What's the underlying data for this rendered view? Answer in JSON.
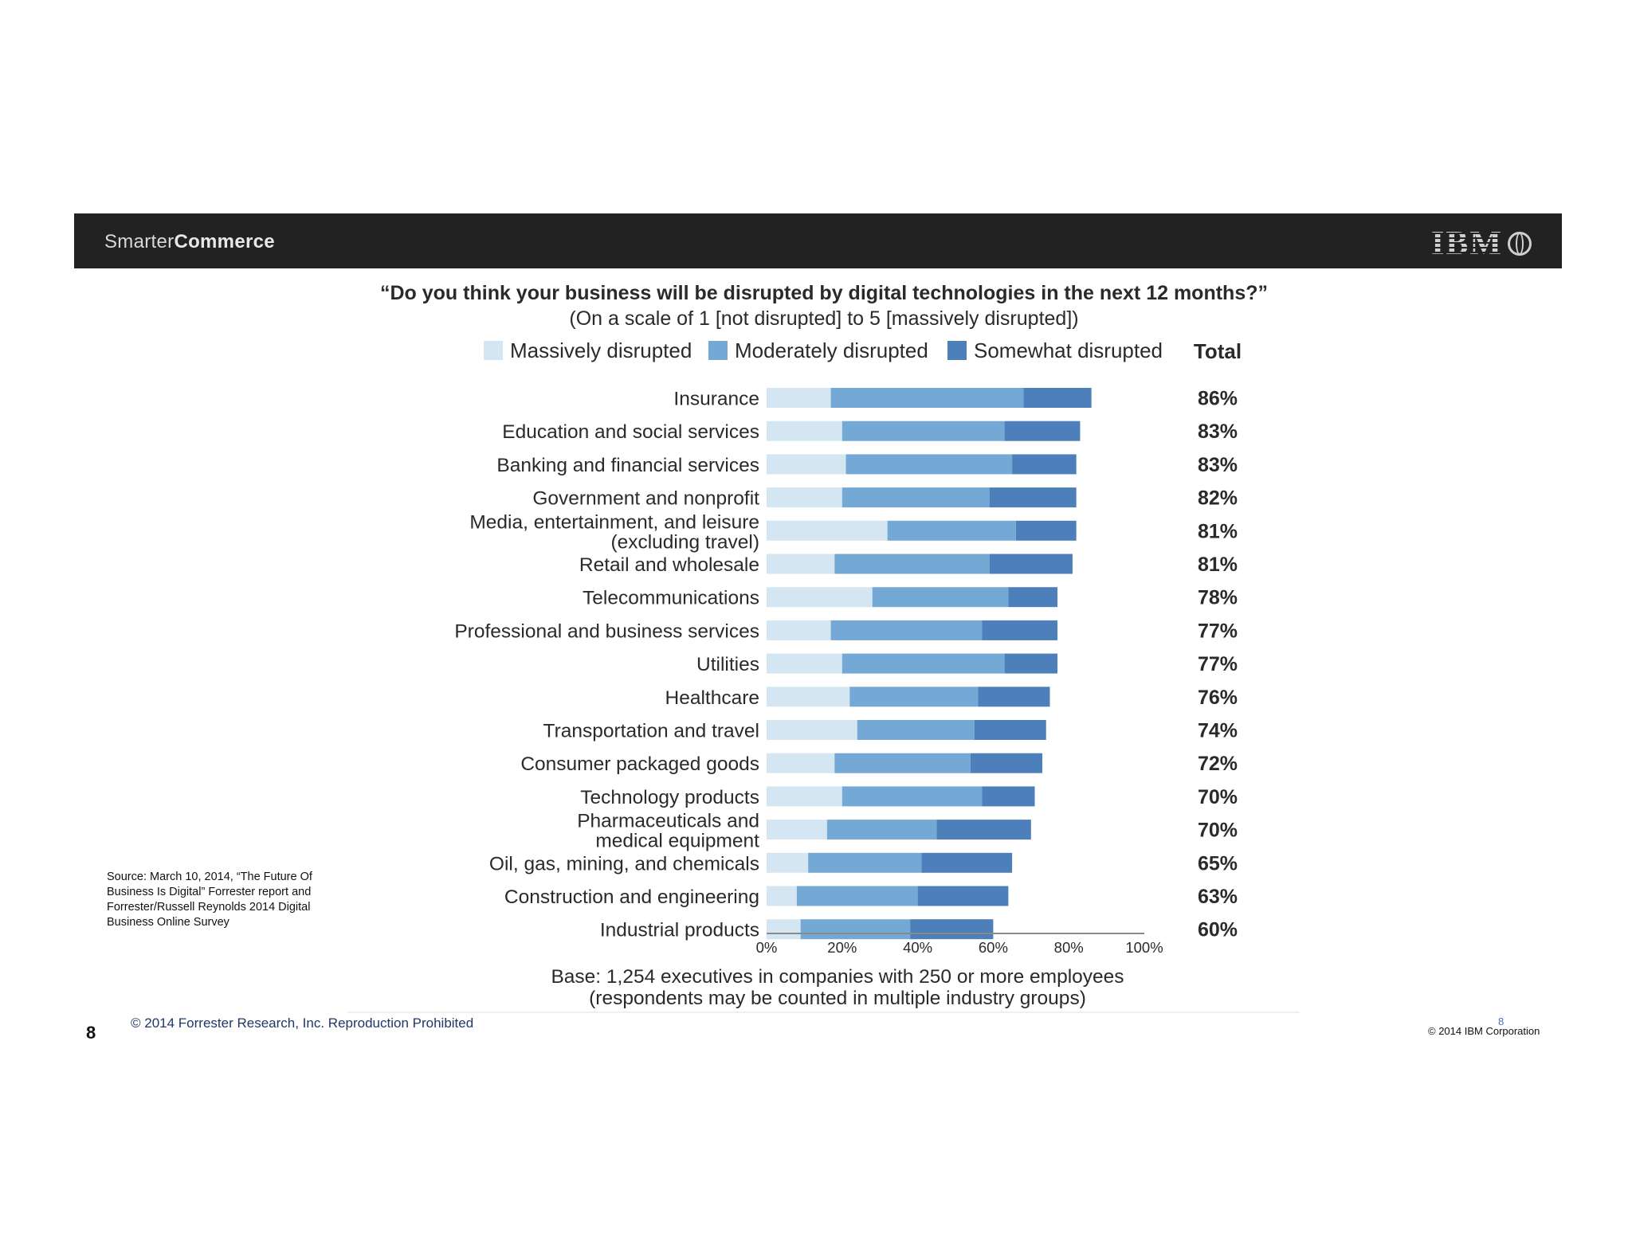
{
  "header": {
    "brand_light": "Smarter",
    "brand_bold": "Commerce",
    "logo_text": "IBM"
  },
  "chart_data": {
    "type": "bar",
    "orientation": "horizontal",
    "stacked": true,
    "title": "“Do you think your business will be disrupted by digital technologies in the next 12 months?”",
    "subtitle": "(On a scale of 1 [not disrupted] to 5 [massively disrupted])",
    "total_header": "Total",
    "categories": [
      [
        "Insurance"
      ],
      [
        "Education and social services"
      ],
      [
        "Banking and financial services"
      ],
      [
        "Government and nonprofit"
      ],
      [
        "Media, entertainment, and leisure",
        "(excluding travel)"
      ],
      [
        "Retail and wholesale"
      ],
      [
        "Telecommunications"
      ],
      [
        "Professional and business services"
      ],
      [
        "Utilities"
      ],
      [
        "Healthcare"
      ],
      [
        "Transportation and travel"
      ],
      [
        "Consumer packaged goods"
      ],
      [
        "Technology products"
      ],
      [
        "Pharmaceuticals and",
        "medical equipment"
      ],
      [
        "Oil, gas, mining, and chemicals"
      ],
      [
        "Construction and engineering"
      ],
      [
        "Industrial products"
      ]
    ],
    "series": [
      {
        "name": "Massively disrupted",
        "color": "#d3e6f2",
        "values": [
          17,
          20,
          21,
          20,
          32,
          18,
          28,
          17,
          20,
          22,
          24,
          18,
          20,
          16,
          11,
          8,
          9
        ]
      },
      {
        "name": "Moderately disrupted",
        "color": "#74a9d6",
        "values": [
          51,
          43,
          44,
          39,
          34,
          41,
          36,
          40,
          43,
          34,
          31,
          36,
          37,
          29,
          30,
          32,
          29
        ]
      },
      {
        "name": "Somewhat disrupted",
        "color": "#4d7fba",
        "values": [
          18,
          20,
          17,
          23,
          16,
          22,
          13,
          20,
          14,
          19,
          19,
          19,
          14,
          25,
          24,
          24,
          22
        ]
      }
    ],
    "totals": [
      "86%",
      "83%",
      "83%",
      "82%",
      "81%",
      "81%",
      "78%",
      "77%",
      "77%",
      "76%",
      "74%",
      "72%",
      "70%",
      "70%",
      "65%",
      "63%",
      "60%"
    ],
    "x_ticks": [
      "0%",
      "20%",
      "40%",
      "60%",
      "80%",
      "100%"
    ],
    "xlim": [
      0,
      100
    ],
    "legend_position": "top",
    "grid": false,
    "base_note": [
      "Base: 1,254 executives in companies with 250 or more employees",
      "(respondents may be counted in multiple industry groups)"
    ]
  },
  "source_note": [
    "Source: March 10, 2014, “The Future Of",
    "Business Is Digital” Forrester report and",
    "Forrester/Russell Reynolds 2014 Digital",
    "Business Online Survey"
  ],
  "footer": {
    "slide_number": "8",
    "copyright_left": "© 2014 Forrester Research, Inc. Reproduction Prohibited",
    "copyright_right": "© 2014 IBM Corporation",
    "page_number_right": "8"
  }
}
